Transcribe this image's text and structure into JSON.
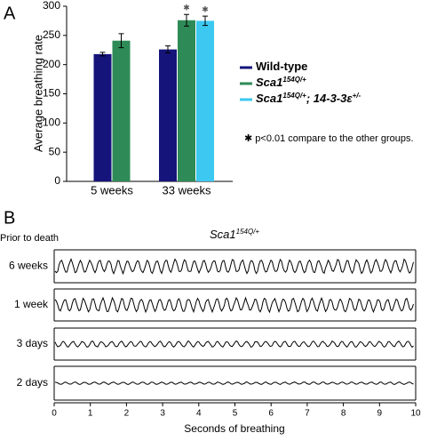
{
  "chart_data": [
    {
      "type": "bar",
      "panel": "A",
      "ylabel": "Average breathing rate",
      "categories": [
        "5 weeks",
        "33 weeks"
      ],
      "series": [
        {
          "name": [
            {
              "text": "Wild-type"
            }
          ],
          "color": "#14147a",
          "values": [
            218,
            226
          ],
          "errors": [
            3,
            6
          ],
          "markers": [
            null,
            null
          ]
        },
        {
          "name": [
            {
              "text": "Sca1",
              "italic": true
            },
            {
              "text": "154Q/+",
              "italic": true,
              "sup": true
            }
          ],
          "color": "#2e8b57",
          "values": [
            241,
            276
          ],
          "errors": [
            12,
            10
          ],
          "markers": [
            null,
            "✱"
          ]
        },
        {
          "name": [
            {
              "text": "Sca1",
              "italic": true
            },
            {
              "text": "154Q/+",
              "italic": true,
              "sup": true
            },
            {
              "text": "; 14-3-3ε",
              "italic": true
            },
            {
              "text": "+/-",
              "italic": true,
              "sup": true
            }
          ],
          "color": "#3cc8f0",
          "values": [
            null,
            275
          ],
          "errors": [
            null,
            8
          ],
          "markers": [
            null,
            "✱"
          ]
        }
      ],
      "note": "✱ p<0.01 compare to the other groups.",
      "ylim": [
        0,
        300
      ],
      "yticks": [
        0,
        50,
        100,
        150,
        200,
        250,
        300
      ]
    },
    {
      "type": "trace",
      "panel": "B",
      "subtitle": "Prior to death",
      "title": [
        {
          "text": "Sca1",
          "italic": true
        },
        {
          "text": "154Q/+",
          "italic": true,
          "sup": true
        }
      ],
      "rows": [
        "6 weeks",
        "1 week",
        "3 days",
        "2 days"
      ],
      "xlabel": "Seconds of breathing",
      "xlim": [
        0,
        10
      ],
      "xticks": [
        0,
        1,
        2,
        3,
        4,
        5,
        6,
        7,
        8,
        9,
        10
      ]
    }
  ]
}
